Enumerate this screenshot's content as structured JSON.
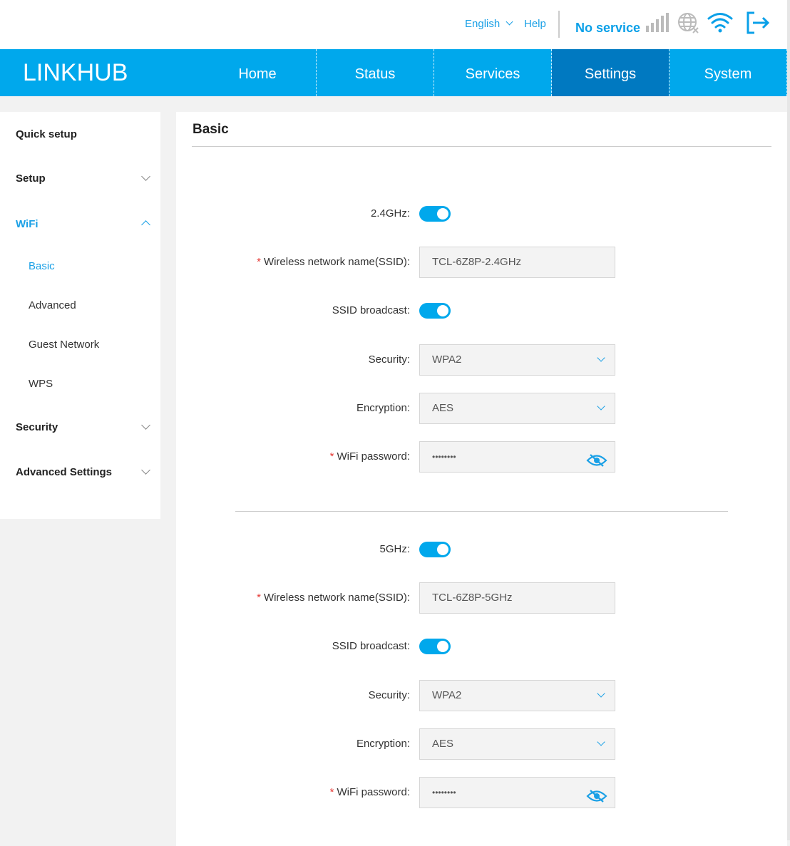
{
  "header": {
    "language": "English",
    "help": "Help",
    "status": "No service",
    "icons": [
      "signal-icon",
      "globe-disconnected-icon",
      "wifi-icon",
      "logout-icon"
    ]
  },
  "brand": {
    "logo_bold": "LINK",
    "logo_light": "HUB"
  },
  "nav": [
    {
      "label": "Home"
    },
    {
      "label": "Status"
    },
    {
      "label": "Services"
    },
    {
      "label": "Settings",
      "active": true
    },
    {
      "label": "System"
    }
  ],
  "sidebar": {
    "quick": "Quick setup",
    "setup": "Setup",
    "wifi": "WiFi",
    "wifi_items": [
      "Basic",
      "Advanced",
      "Guest Network",
      "WPS"
    ],
    "security": "Security",
    "advanced": "Advanced Settings"
  },
  "page": {
    "title": "Basic"
  },
  "colors": {
    "accent": "#00a8ec",
    "active_nav": "#0079c1"
  },
  "bands": [
    {
      "band_label": "2.4GHz:",
      "enabled": true,
      "ssid_label": "Wireless network name(SSID):",
      "ssid": "TCL-6Z8P-2.4GHz",
      "broadcast_label": "SSID broadcast:",
      "broadcast": true,
      "security_label": "Security:",
      "security": "WPA2",
      "encryption_label": "Encryption:",
      "encryption": "AES",
      "password_label": "WiFi password:",
      "password": "••••••••"
    },
    {
      "band_label": "5GHz:",
      "enabled": true,
      "ssid_label": "Wireless network name(SSID):",
      "ssid": "TCL-6Z8P-5GHz",
      "broadcast_label": "SSID broadcast:",
      "broadcast": true,
      "security_label": "Security:",
      "security": "WPA2",
      "encryption_label": "Encryption:",
      "encryption": "AES",
      "password_label": "WiFi password:",
      "password": "••••••••"
    }
  ]
}
